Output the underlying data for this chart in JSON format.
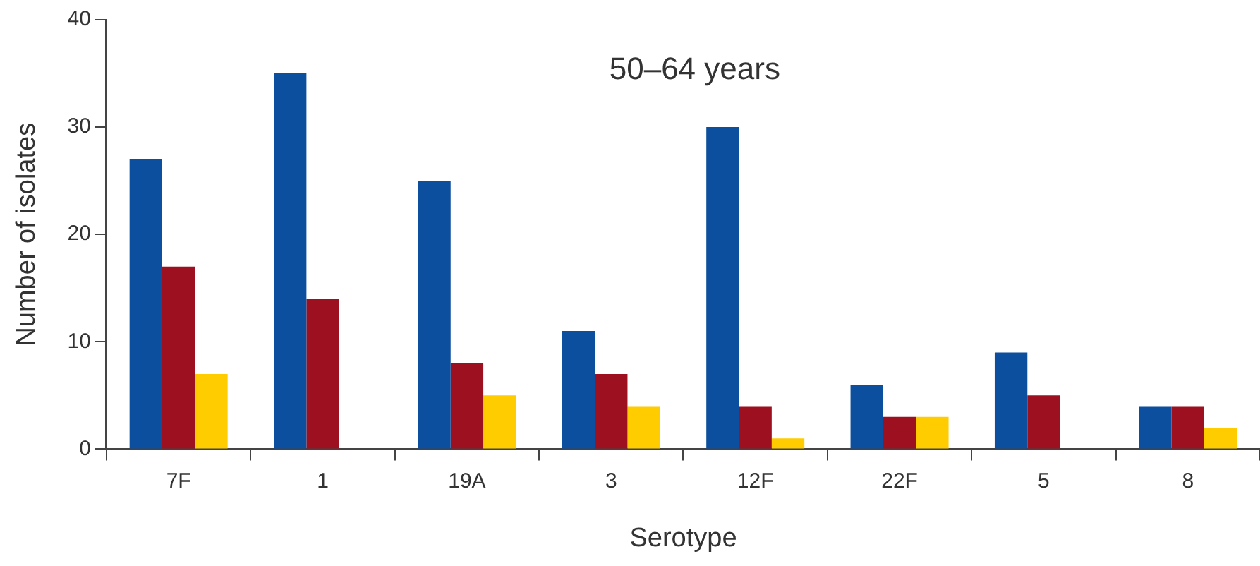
{
  "chart_data": {
    "type": "bar",
    "title": "50–64 years",
    "xlabel": "Serotype",
    "ylabel": "Number of isolates",
    "categories": [
      "7F",
      "1",
      "19A",
      "3",
      "12F",
      "22F",
      "5",
      "8"
    ],
    "series": [
      {
        "color": "#0b4f9e",
        "values": [
          27,
          35,
          25,
          11,
          30,
          6,
          9,
          4
        ]
      },
      {
        "color": "#9c1020",
        "values": [
          17,
          14,
          8,
          7,
          4,
          3,
          5,
          4
        ]
      },
      {
        "color": "#ffcc00",
        "values": [
          7,
          0,
          5,
          4,
          1,
          3,
          0,
          2
        ]
      }
    ],
    "ylim": [
      0,
      40
    ],
    "yticks": [
      0,
      10,
      20,
      30,
      40
    ],
    "legend": false
  }
}
